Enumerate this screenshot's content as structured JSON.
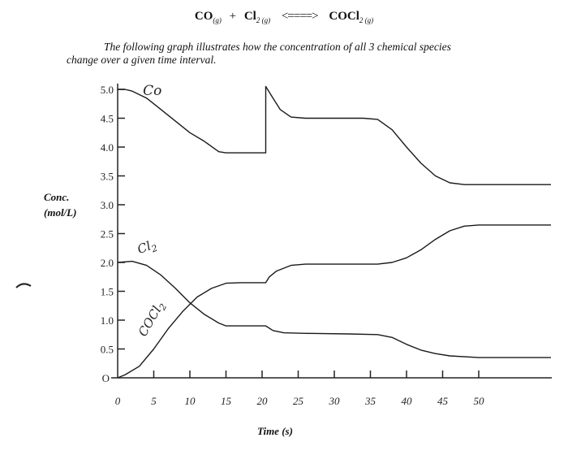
{
  "header": {
    "reactant1": "CO",
    "reactant1_state": "(g)",
    "plus": "+",
    "reactant2": "Cl",
    "reactant2_sub": "2 (g)",
    "arrow": "<====>",
    "product": "COCl",
    "product_sub": "2 (g)",
    "caption_line1": "The following graph illustrates how the concentration of all 3 chemical species",
    "caption_line2": "change over a given time interval."
  },
  "chart_data": {
    "type": "line",
    "xlabel": "Time (s)",
    "ylabel_line1": "Conc.",
    "ylabel_line2": "(mol/L)",
    "xlim": [
      0,
      60
    ],
    "ylim": [
      0,
      5.0
    ],
    "x_ticks": [
      0,
      5,
      10,
      15,
      20,
      25,
      30,
      35,
      40,
      45,
      50
    ],
    "x_tick_labels": [
      "0",
      "5",
      "10",
      "15",
      "20",
      "25",
      "30",
      "35",
      "40",
      "45",
      "50"
    ],
    "y_ticks": [
      0.5,
      1.0,
      1.5,
      2.0,
      2.5,
      3.0,
      3.5,
      4.0,
      4.5,
      5.0
    ],
    "y_tick_labels": [
      "0.5",
      "1.0",
      "1.5",
      "2.0",
      "2.5",
      "3.0",
      "3.5",
      "4.0",
      "4.5",
      "5.0"
    ],
    "y_zero_label": "O",
    "series": [
      {
        "name": "CO",
        "points": [
          [
            0,
            5.0
          ],
          [
            1,
            5.0
          ],
          [
            2,
            4.97
          ],
          [
            4,
            4.85
          ],
          [
            6,
            4.65
          ],
          [
            8,
            4.45
          ],
          [
            10,
            4.25
          ],
          [
            12,
            4.1
          ],
          [
            14,
            3.92
          ],
          [
            15,
            3.9
          ],
          [
            17,
            3.9
          ],
          [
            20.5,
            3.9
          ],
          [
            20.5,
            5.05
          ],
          [
            21.5,
            4.85
          ],
          [
            22.5,
            4.65
          ],
          [
            24,
            4.52
          ],
          [
            26,
            4.5
          ],
          [
            30,
            4.5
          ],
          [
            34,
            4.5
          ],
          [
            36,
            4.48
          ],
          [
            38,
            4.3
          ],
          [
            40,
            4.0
          ],
          [
            42,
            3.72
          ],
          [
            44,
            3.5
          ],
          [
            46,
            3.38
          ],
          [
            48,
            3.35
          ],
          [
            50,
            3.35
          ],
          [
            60,
            3.35
          ]
        ]
      },
      {
        "name": "Cl2",
        "points": [
          [
            0,
            2.0
          ],
          [
            2,
            2.02
          ],
          [
            4,
            1.95
          ],
          [
            6,
            1.78
          ],
          [
            8,
            1.55
          ],
          [
            10,
            1.3
          ],
          [
            12,
            1.1
          ],
          [
            14,
            0.95
          ],
          [
            15,
            0.9
          ],
          [
            18,
            0.9
          ],
          [
            20.5,
            0.9
          ],
          [
            21.5,
            0.82
          ],
          [
            23,
            0.78
          ],
          [
            26,
            0.77
          ],
          [
            32,
            0.76
          ],
          [
            36,
            0.75
          ],
          [
            38,
            0.7
          ],
          [
            40,
            0.58
          ],
          [
            42,
            0.48
          ],
          [
            44,
            0.42
          ],
          [
            46,
            0.38
          ],
          [
            50,
            0.35
          ],
          [
            60,
            0.35
          ]
        ]
      },
      {
        "name": "COCl2",
        "points": [
          [
            0,
            0.0
          ],
          [
            1,
            0.05
          ],
          [
            3,
            0.2
          ],
          [
            5,
            0.5
          ],
          [
            7,
            0.85
          ],
          [
            9,
            1.15
          ],
          [
            11,
            1.4
          ],
          [
            13,
            1.55
          ],
          [
            15,
            1.64
          ],
          [
            17,
            1.65
          ],
          [
            20.5,
            1.65
          ],
          [
            21,
            1.75
          ],
          [
            22,
            1.85
          ],
          [
            24,
            1.95
          ],
          [
            26,
            1.97
          ],
          [
            30,
            1.97
          ],
          [
            36,
            1.97
          ],
          [
            38,
            2.0
          ],
          [
            40,
            2.08
          ],
          [
            42,
            2.22
          ],
          [
            44,
            2.4
          ],
          [
            46,
            2.55
          ],
          [
            48,
            2.63
          ],
          [
            50,
            2.65
          ],
          [
            60,
            2.65
          ]
        ]
      }
    ],
    "annotations": [
      {
        "text": "Co",
        "x": 3.5,
        "y": 4.9,
        "rotate": 0
      },
      {
        "text": "Cl",
        "sub": "2",
        "x": 3,
        "y": 2.15,
        "rotate": -20
      },
      {
        "text": "COCl",
        "sub": "2",
        "x": 3.8,
        "y": 0.7,
        "rotate": -60
      }
    ],
    "grid": false,
    "legend": "none"
  }
}
